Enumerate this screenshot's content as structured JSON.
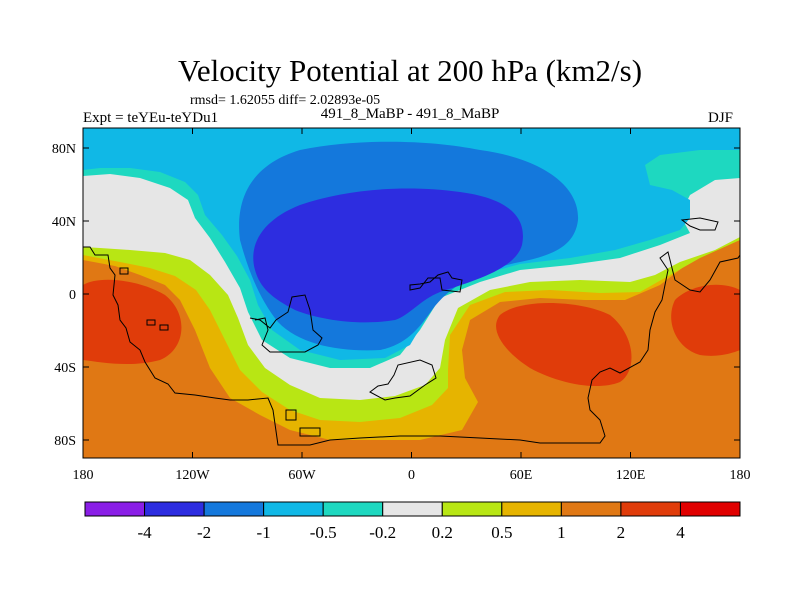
{
  "title": "Velocity Potential at 200 hPa (km2/s)",
  "stats": "rmsd= 1.62055 diff= 2.02893e-05",
  "experiment": "Expt = teYEu-teYDu1",
  "run_label": "491_8_MaBP - 491_8_MaBP",
  "season": "DJF",
  "map": {
    "lon_ticks": [
      "180",
      "120W",
      "60W",
      "0",
      "60E",
      "120E",
      "180"
    ],
    "lat_ticks": [
      "80N",
      "40N",
      "0",
      "40S",
      "80S"
    ]
  },
  "colorbar": {
    "labels": [
      "-4",
      "-2",
      "-1",
      "-0.5",
      "-0.2",
      "0.2",
      "0.5",
      "1",
      "2",
      "4"
    ],
    "colors": [
      "#8a1ee6",
      "#2d2de0",
      "#1478dc",
      "#10b8e6",
      "#1ed8c0",
      "#e6e6e6",
      "#b8e614",
      "#e6b400",
      "#e07814",
      "#e03c0a",
      "#e00000"
    ]
  }
}
